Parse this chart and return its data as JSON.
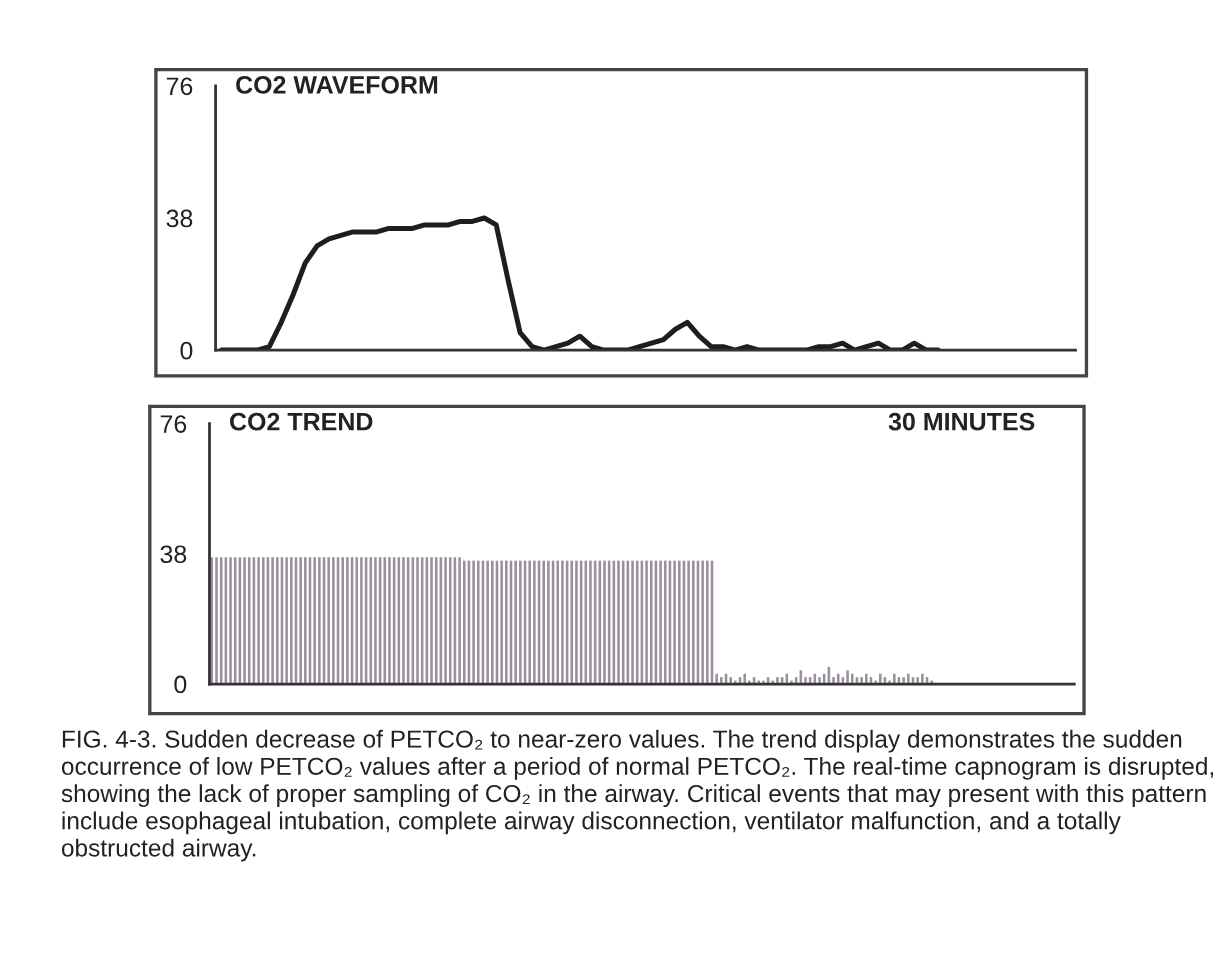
{
  "chart_data": [
    {
      "type": "line",
      "title": "CO2 WAVEFORM",
      "color": "#1e1e1e",
      "ylim": [
        0,
        76
      ],
      "yticks": [
        0,
        38,
        76
      ],
      "tick_labels": "y",
      "categories": [
        null,
        null,
        null,
        null,
        null,
        null,
        null,
        null,
        null,
        null,
        null,
        null,
        null,
        null,
        null,
        null,
        null,
        null,
        null,
        null,
        null,
        null,
        null,
        null,
        null,
        null,
        null,
        null,
        null,
        null,
        null,
        null,
        null,
        null,
        null,
        null,
        null,
        null,
        null,
        null,
        null,
        null,
        null,
        null,
        null,
        null,
        null,
        null,
        null,
        null,
        null,
        null,
        null,
        null,
        null,
        null,
        null,
        null,
        null,
        null,
        null,
        null,
        null,
        null,
        null,
        null,
        null,
        null,
        null,
        null,
        null,
        null
      ],
      "values": [
        0,
        0,
        0,
        0,
        1,
        8,
        16,
        25,
        30,
        32,
        33,
        34,
        34,
        34,
        35,
        35,
        35,
        36,
        36,
        36,
        37,
        37,
        38,
        36,
        20,
        5,
        1,
        0,
        1,
        2,
        4,
        1,
        0,
        0,
        0,
        1,
        2,
        3,
        6,
        8,
        4,
        1,
        1,
        0,
        1,
        0,
        0,
        0,
        0,
        0,
        1,
        1,
        2,
        0,
        1,
        2,
        0,
        0,
        2,
        0,
        0,
        null,
        null,
        null,
        null,
        null,
        null,
        null,
        null,
        null,
        null,
        null
      ]
    },
    {
      "type": "bar",
      "title": "CO2 TREND",
      "color": "#9b8f9e",
      "ylim": [
        0,
        76
      ],
      "yticks": [
        0,
        38,
        76
      ],
      "tick_labels": "y",
      "annotations": [
        "30 MINUTES",
        "FIG. 4-3. Sudden decrease of PETCO₂ to near-zero values. The trend display demonstrates the sudden occurrence of low PETCO₂ values after a period of normal PETCO₂. The real-time capnogram is disrupted, showing the lack of proper sampling of CO₂ in the airway. Critical events that may present with this pattern include esophageal intubation, complete airway disconnection, ventilator malfunction, and a totally obstructed airway."
      ],
      "categories": [
        null,
        null,
        null,
        null,
        null,
        null,
        null,
        null,
        null,
        null,
        null,
        null,
        null,
        null,
        null,
        null,
        null,
        null,
        null,
        null,
        null,
        null,
        null,
        null,
        null,
        null,
        null,
        null,
        null,
        null,
        null,
        null,
        null,
        null,
        null,
        null,
        null,
        null,
        null,
        null,
        null,
        null,
        null,
        null,
        null,
        null,
        null,
        null,
        null,
        null,
        null,
        null,
        null,
        null,
        null,
        null,
        null,
        null,
        null,
        null,
        null,
        null,
        null,
        null,
        null,
        null,
        null,
        null,
        null,
        null,
        null,
        null,
        null,
        null,
        null,
        null,
        null,
        null,
        null,
        null,
        null,
        null,
        null,
        null,
        null,
        null,
        null,
        null,
        null,
        null,
        null,
        null,
        null,
        null,
        null,
        null,
        null,
        null,
        null,
        null,
        null,
        null,
        null,
        null,
        null,
        null,
        null,
        null,
        null,
        null,
        null,
        null,
        null,
        null,
        null,
        null,
        null,
        null,
        null,
        null,
        null,
        null,
        null,
        null,
        null,
        null,
        null,
        null,
        null,
        null,
        null,
        null,
        null,
        null,
        null,
        null,
        null,
        null,
        null,
        null,
        null,
        null,
        null,
        null,
        null,
        null,
        null,
        null,
        null,
        null,
        null,
        null,
        null,
        null,
        null,
        null,
        null,
        null,
        null,
        null,
        null,
        null,
        null,
        null,
        null,
        null,
        null,
        null,
        null,
        null,
        null,
        null,
        null,
        null,
        null,
        null,
        null,
        null,
        null,
        null,
        null,
        null,
        null,
        null,
        null
      ],
      "values": [
        37,
        37,
        37,
        37,
        37,
        37,
        37,
        37,
        37,
        37,
        37,
        37,
        37,
        37,
        37,
        37,
        37,
        37,
        37,
        37,
        37,
        37,
        37,
        37,
        37,
        37,
        37,
        37,
        37,
        37,
        37,
        37,
        37,
        37,
        37,
        37,
        37,
        37,
        37,
        37,
        37,
        37,
        37,
        37,
        37,
        37,
        37,
        37,
        37,
        37,
        37,
        37,
        37,
        37,
        36,
        36,
        36,
        36,
        36,
        36,
        36,
        36,
        36,
        36,
        36,
        36,
        36,
        36,
        36,
        36,
        36,
        36,
        36,
        36,
        36,
        36,
        36,
        36,
        36,
        36,
        36,
        36,
        36,
        36,
        36,
        36,
        36,
        36,
        36,
        36,
        36,
        36,
        36,
        36,
        36,
        36,
        36,
        36,
        36,
        36,
        36,
        36,
        36,
        36,
        36,
        36,
        36,
        36,
        3,
        2,
        3,
        2,
        1,
        2,
        3,
        1,
        2,
        1,
        1,
        2,
        1,
        2,
        2,
        3,
        1,
        2,
        4,
        2,
        2,
        3,
        2,
        3,
        5,
        2,
        3,
        2,
        4,
        3,
        2,
        2,
        3,
        2,
        1,
        3,
        2,
        1,
        3,
        2,
        2,
        3,
        2,
        2,
        3,
        2,
        1,
        null,
        null,
        null,
        null,
        null,
        null,
        null,
        null,
        null,
        null,
        null,
        null,
        null,
        null,
        null,
        null,
        null,
        null,
        null,
        null,
        null,
        null,
        null,
        null,
        null,
        null,
        null,
        null,
        null,
        null
      ]
    }
  ]
}
